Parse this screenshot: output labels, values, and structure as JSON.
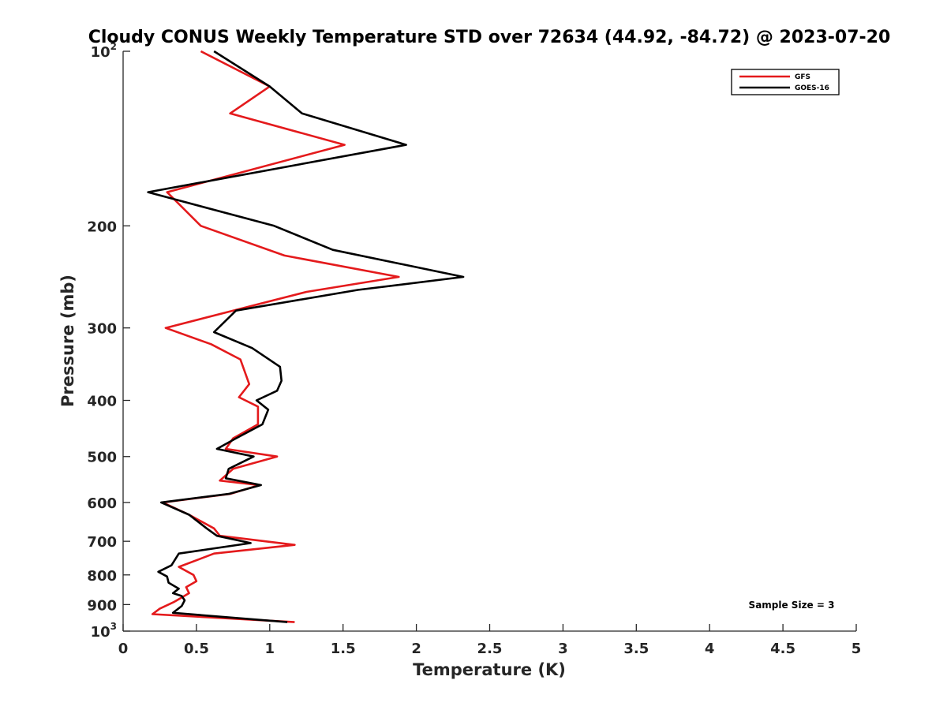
{
  "chart_data": {
    "type": "line",
    "title": "Cloudy CONUS Weekly Temperature STD over 72634 (44.92, -84.72) @ 2023-07-20",
    "xlabel": "Temperature (K)",
    "ylabel": "Pressure (mb)",
    "xlim": [
      0,
      5
    ],
    "ylim": [
      100,
      1000
    ],
    "y_scale": "log",
    "y_reversed": true,
    "grid": false,
    "legend_position": "top-right",
    "x_ticks": [
      "0",
      "0.5",
      "1",
      "1.5",
      "2",
      "2.5",
      "3",
      "3.5",
      "4",
      "4.5",
      "5"
    ],
    "y_ticks": [
      {
        "value": 100,
        "base": "10",
        "sup": "2"
      },
      {
        "value": 200,
        "label": "200"
      },
      {
        "value": 300,
        "label": "300"
      },
      {
        "value": 400,
        "label": "400"
      },
      {
        "value": 500,
        "label": "500"
      },
      {
        "value": 600,
        "label": "600"
      },
      {
        "value": 700,
        "label": "700"
      },
      {
        "value": 800,
        "label": "800"
      },
      {
        "value": 900,
        "label": "900"
      },
      {
        "value": 1000,
        "base": "10",
        "sup": "3"
      }
    ],
    "annotation": "Sample Size = 3",
    "series": [
      {
        "name": "GFS",
        "color": "#e41a1c",
        "points": [
          [
            0.53,
            100
          ],
          [
            1.0,
            115
          ],
          [
            0.73,
            128
          ],
          [
            1.51,
            145
          ],
          [
            0.3,
            175
          ],
          [
            0.53,
            200
          ],
          [
            1.1,
            225
          ],
          [
            1.88,
            245
          ],
          [
            1.25,
            260
          ],
          [
            0.75,
            280
          ],
          [
            0.29,
            300
          ],
          [
            0.6,
            320
          ],
          [
            0.8,
            340
          ],
          [
            0.86,
            375
          ],
          [
            0.79,
            395
          ],
          [
            0.92,
            410
          ],
          [
            0.92,
            440
          ],
          [
            0.75,
            465
          ],
          [
            0.7,
            485
          ],
          [
            1.05,
            500
          ],
          [
            0.75,
            525
          ],
          [
            0.66,
            550
          ],
          [
            0.93,
            560
          ],
          [
            0.73,
            580
          ],
          [
            0.27,
            600
          ],
          [
            0.45,
            630
          ],
          [
            0.62,
            665
          ],
          [
            0.66,
            685
          ],
          [
            1.17,
            710
          ],
          [
            0.62,
            735
          ],
          [
            0.38,
            775
          ],
          [
            0.48,
            800
          ],
          [
            0.5,
            820
          ],
          [
            0.43,
            840
          ],
          [
            0.45,
            860
          ],
          [
            0.4,
            875
          ],
          [
            0.35,
            890
          ],
          [
            0.25,
            915
          ],
          [
            0.2,
            935
          ],
          [
            1.17,
            965
          ]
        ]
      },
      {
        "name": "GOES-16",
        "color": "#000000",
        "points": [
          [
            0.62,
            100
          ],
          [
            1.0,
            115
          ],
          [
            1.22,
            128
          ],
          [
            1.93,
            145
          ],
          [
            0.17,
            175
          ],
          [
            1.03,
            200
          ],
          [
            1.43,
            220
          ],
          [
            2.32,
            245
          ],
          [
            1.6,
            258
          ],
          [
            0.77,
            280
          ],
          [
            0.62,
            305
          ],
          [
            0.88,
            325
          ],
          [
            1.07,
            350
          ],
          [
            1.08,
            370
          ],
          [
            1.05,
            385
          ],
          [
            0.91,
            400
          ],
          [
            0.99,
            415
          ],
          [
            0.95,
            440
          ],
          [
            0.77,
            465
          ],
          [
            0.64,
            485
          ],
          [
            0.89,
            500
          ],
          [
            0.72,
            525
          ],
          [
            0.7,
            545
          ],
          [
            0.94,
            560
          ],
          [
            0.72,
            580
          ],
          [
            0.26,
            600
          ],
          [
            0.45,
            630
          ],
          [
            0.57,
            665
          ],
          [
            0.64,
            685
          ],
          [
            0.87,
            705
          ],
          [
            0.38,
            735
          ],
          [
            0.33,
            770
          ],
          [
            0.24,
            790
          ],
          [
            0.3,
            805
          ],
          [
            0.31,
            825
          ],
          [
            0.38,
            845
          ],
          [
            0.34,
            860
          ],
          [
            0.4,
            870
          ],
          [
            0.42,
            885
          ],
          [
            0.4,
            905
          ],
          [
            0.34,
            930
          ],
          [
            1.12,
            965
          ]
        ]
      }
    ]
  }
}
